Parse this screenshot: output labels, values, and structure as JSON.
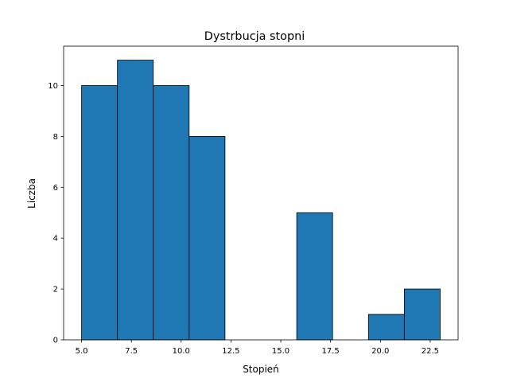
{
  "chart_data": {
    "type": "bar",
    "title": "Dystrbucja stopni",
    "xlabel": "Stopień",
    "ylabel": "Liczba",
    "bins": [
      [
        5.0,
        6.8,
        10
      ],
      [
        6.8,
        8.6,
        11
      ],
      [
        8.6,
        10.4,
        10
      ],
      [
        10.4,
        12.2,
        8
      ],
      [
        12.2,
        14.0,
        0
      ],
      [
        14.0,
        15.8,
        0
      ],
      [
        15.8,
        17.6,
        5
      ],
      [
        17.6,
        19.4,
        0
      ],
      [
        19.4,
        21.2,
        1
      ],
      [
        21.2,
        23.0,
        2
      ]
    ],
    "xlim": [
      4.1,
      23.9
    ],
    "ylim": [
      0,
      11.55
    ],
    "xticks": [
      5.0,
      7.5,
      10.0,
      12.5,
      15.0,
      17.5,
      20.0,
      22.5
    ],
    "xtick_labels": [
      "5.0",
      "7.5",
      "10.0",
      "12.5",
      "15.0",
      "17.5",
      "20.0",
      "22.5"
    ],
    "yticks": [
      0,
      2,
      4,
      6,
      8,
      10
    ],
    "ytick_labels": [
      "0",
      "2",
      "4",
      "6",
      "8",
      "10"
    ],
    "grid": false,
    "colors": {
      "bar_fill": "#1f77b4",
      "bar_edge": "#000000"
    }
  }
}
